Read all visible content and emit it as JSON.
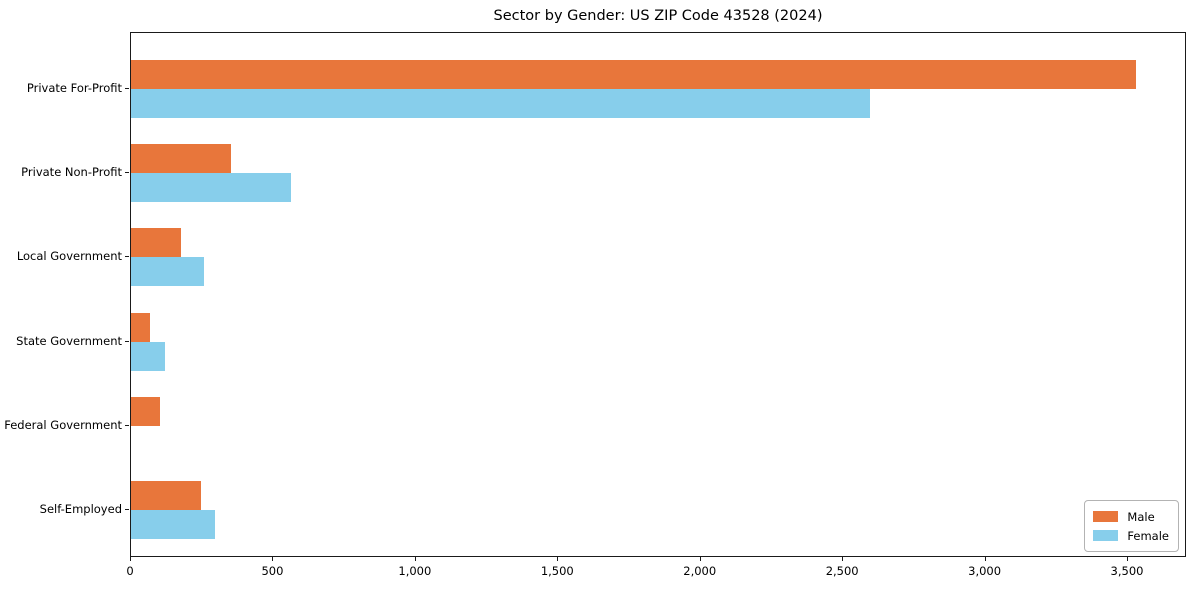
{
  "title": "Sector by Gender: US ZIP Code 43528 (2024)",
  "chart_data": {
    "type": "bar",
    "orientation": "horizontal",
    "title": "Sector by Gender: US ZIP Code 43528 (2024)",
    "categories": [
      "Private For-Profit",
      "Private Non-Profit",
      "Local Government",
      "State Government",
      "Federal Government",
      "Self-Employed"
    ],
    "series": [
      {
        "name": "Male",
        "color": "#e8763b",
        "values": [
          3527,
          351,
          177,
          68,
          103,
          247
        ]
      },
      {
        "name": "Female",
        "color": "#87ceeb",
        "values": [
          2594,
          562,
          258,
          121,
          0,
          295
        ]
      }
    ],
    "xlabel": "",
    "ylabel": "",
    "xlim": [
      0,
      3700
    ],
    "x_tick_values": [
      0,
      500,
      1000,
      1500,
      2000,
      2500,
      3000,
      3500
    ],
    "x_tick_labels": [
      "0",
      "500",
      "1,000",
      "1,500",
      "2,000",
      "2,500",
      "3,000",
      "3,500"
    ],
    "legend": {
      "position": "lower right",
      "entries": [
        "Male",
        "Female"
      ]
    },
    "grid": false,
    "background": "#ffffff",
    "spine_color": "#1a1a1a"
  }
}
